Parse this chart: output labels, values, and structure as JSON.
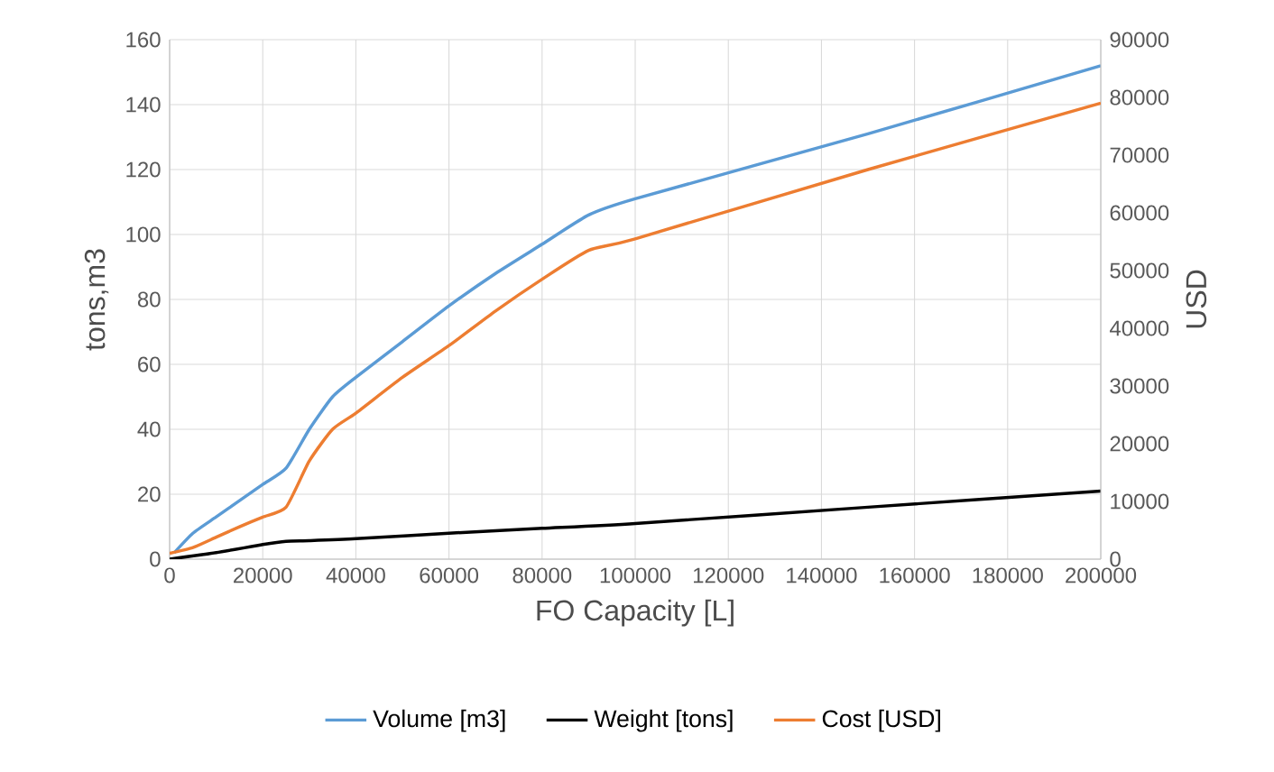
{
  "chart_data": {
    "type": "line",
    "xlabel": "FO Capacity [L]",
    "ylabel": "tons,m3",
    "y2label": "USD",
    "xlim": [
      0,
      200000
    ],
    "xticks": [
      0,
      20000,
      40000,
      60000,
      80000,
      100000,
      120000,
      140000,
      160000,
      180000,
      200000
    ],
    "ylim": [
      0,
      160
    ],
    "yticks": [
      0,
      20,
      40,
      60,
      80,
      100,
      120,
      140,
      160
    ],
    "y2lim": [
      0,
      90000
    ],
    "y2ticks": [
      0,
      10000,
      20000,
      30000,
      40000,
      50000,
      60000,
      70000,
      80000,
      90000
    ],
    "grid": true,
    "legend": "bottom",
    "marker": "none",
    "line_style": "solid",
    "series": [
      {
        "name": "Volume [m3]",
        "color": "#5b9bd5",
        "x": [
          1000,
          5000,
          10000,
          15000,
          20000,
          25000,
          30000,
          35000,
          40000,
          50000,
          60000,
          70000,
          80000,
          90000,
          100000,
          150000,
          200000
        ],
        "values": [
          2,
          8,
          13,
          18,
          23,
          28,
          40,
          50,
          56,
          67,
          78,
          88,
          97,
          106,
          111,
          131,
          152
        ]
      },
      {
        "name": "Weight [tons]",
        "color": "#000000",
        "x": [
          0,
          10000,
          20000,
          25000,
          30000,
          40000,
          60000,
          80000,
          100000,
          150000,
          200000
        ],
        "values": [
          0,
          2,
          4.5,
          5.5,
          5.7,
          6.3,
          8,
          9.5,
          11,
          16,
          21
        ]
      },
      {
        "name": "Cost [USD]",
        "color": "#ed7d31",
        "axis": "y2",
        "x": [
          0,
          5000,
          10000,
          15000,
          20000,
          25000,
          30000,
          35000,
          40000,
          50000,
          60000,
          70000,
          80000,
          90000,
          100000,
          150000,
          200000
        ],
        "values": [
          1000,
          2000,
          3800,
          5600,
          7300,
          9000,
          17000,
          22500,
          25300,
          31500,
          37000,
          43000,
          48500,
          53500,
          55500,
          67500,
          79000
        ]
      }
    ]
  }
}
